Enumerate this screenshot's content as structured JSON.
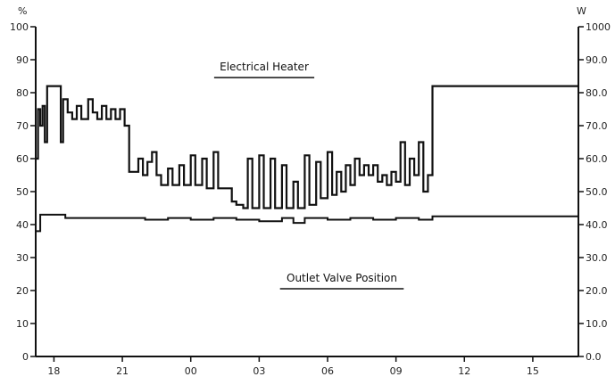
{
  "chart_data": {
    "type": "line",
    "y_left_unit": "%",
    "y_right_unit": "W",
    "ylim_left": [
      0,
      100
    ],
    "ylim_right": [
      0,
      1000
    ],
    "y_left_ticks": [
      "100",
      "90",
      "80",
      "70",
      "60",
      "50",
      "40",
      "30",
      "20",
      "10",
      "0"
    ],
    "y_right_ticks": [
      "1000",
      "90.0",
      "80.0",
      "70.0",
      "60.0",
      "50.0",
      "40.0",
      "30.0",
      "20.0",
      "10.0",
      "0.0"
    ],
    "x_ticks": [
      "18",
      "21",
      "00",
      "03",
      "06",
      "09",
      "12",
      "15"
    ],
    "x_tick_hours": [
      18,
      21,
      24,
      27,
      30,
      33,
      36,
      39
    ],
    "xlim_hours": [
      17.2,
      41
    ],
    "annotations": [
      "Electrical Heater",
      "Outlet Valve Position"
    ],
    "series": [
      {
        "name": "Electrical Heater",
        "points": [
          [
            17.2,
            60
          ],
          [
            17.3,
            75
          ],
          [
            17.4,
            70
          ],
          [
            17.5,
            76
          ],
          [
            17.6,
            65
          ],
          [
            17.7,
            82
          ],
          [
            18.2,
            82
          ],
          [
            18.3,
            65
          ],
          [
            18.4,
            78
          ],
          [
            18.6,
            74
          ],
          [
            18.8,
            72
          ],
          [
            19.0,
            76
          ],
          [
            19.2,
            72
          ],
          [
            19.5,
            78
          ],
          [
            19.7,
            74
          ],
          [
            19.9,
            72
          ],
          [
            20.1,
            76
          ],
          [
            20.3,
            72
          ],
          [
            20.5,
            75
          ],
          [
            20.7,
            72
          ],
          [
            20.9,
            75
          ],
          [
            21.1,
            70
          ],
          [
            21.3,
            56
          ],
          [
            21.5,
            56
          ],
          [
            21.7,
            60
          ],
          [
            21.9,
            55
          ],
          [
            22.1,
            59
          ],
          [
            22.3,
            62
          ],
          [
            22.5,
            55
          ],
          [
            22.7,
            52
          ],
          [
            23.0,
            57
          ],
          [
            23.2,
            52
          ],
          [
            23.5,
            58
          ],
          [
            23.7,
            52
          ],
          [
            24.0,
            61
          ],
          [
            24.2,
            52
          ],
          [
            24.5,
            60
          ],
          [
            24.7,
            51
          ],
          [
            25.0,
            62
          ],
          [
            25.2,
            51
          ],
          [
            25.5,
            51
          ],
          [
            25.8,
            47
          ],
          [
            26.0,
            46
          ],
          [
            26.3,
            45
          ],
          [
            26.5,
            60
          ],
          [
            26.7,
            45
          ],
          [
            27.0,
            61
          ],
          [
            27.2,
            45
          ],
          [
            27.5,
            60
          ],
          [
            27.7,
            45
          ],
          [
            28.0,
            58
          ],
          [
            28.2,
            45
          ],
          [
            28.5,
            53
          ],
          [
            28.7,
            45
          ],
          [
            29.0,
            61
          ],
          [
            29.2,
            46
          ],
          [
            29.5,
            59
          ],
          [
            29.7,
            48
          ],
          [
            30.0,
            62
          ],
          [
            30.2,
            49
          ],
          [
            30.4,
            56
          ],
          [
            30.6,
            50
          ],
          [
            30.8,
            58
          ],
          [
            31.0,
            52
          ],
          [
            31.2,
            60
          ],
          [
            31.4,
            55
          ],
          [
            31.6,
            58
          ],
          [
            31.8,
            55
          ],
          [
            32.0,
            58
          ],
          [
            32.2,
            53
          ],
          [
            32.4,
            55
          ],
          [
            32.6,
            52
          ],
          [
            32.8,
            56
          ],
          [
            33.0,
            53
          ],
          [
            33.2,
            65
          ],
          [
            33.4,
            52
          ],
          [
            33.6,
            60
          ],
          [
            33.8,
            55
          ],
          [
            34.0,
            65
          ],
          [
            34.2,
            50
          ],
          [
            34.4,
            55
          ],
          [
            34.6,
            82
          ],
          [
            36.0,
            82
          ],
          [
            38.0,
            82
          ],
          [
            40.0,
            82
          ],
          [
            41.0,
            82
          ]
        ]
      },
      {
        "name": "Outlet Valve Position",
        "points": [
          [
            17.2,
            38
          ],
          [
            17.4,
            43
          ],
          [
            17.6,
            43
          ],
          [
            18.0,
            43
          ],
          [
            18.5,
            42
          ],
          [
            19.0,
            42
          ],
          [
            20.0,
            42
          ],
          [
            21.0,
            42
          ],
          [
            22.0,
            41.5
          ],
          [
            23.0,
            42
          ],
          [
            24.0,
            41.5
          ],
          [
            25.0,
            42
          ],
          [
            26.0,
            41.5
          ],
          [
            27.0,
            41
          ],
          [
            28.0,
            42
          ],
          [
            28.5,
            40.5
          ],
          [
            29.0,
            42
          ],
          [
            30.0,
            41.5
          ],
          [
            31.0,
            42
          ],
          [
            32.0,
            41.5
          ],
          [
            33.0,
            42
          ],
          [
            34.0,
            41.5
          ],
          [
            34.6,
            42.5
          ],
          [
            36.0,
            42.5
          ],
          [
            38.0,
            42.5
          ],
          [
            40.0,
            42.5
          ],
          [
            41.0,
            42.5
          ]
        ]
      }
    ]
  }
}
